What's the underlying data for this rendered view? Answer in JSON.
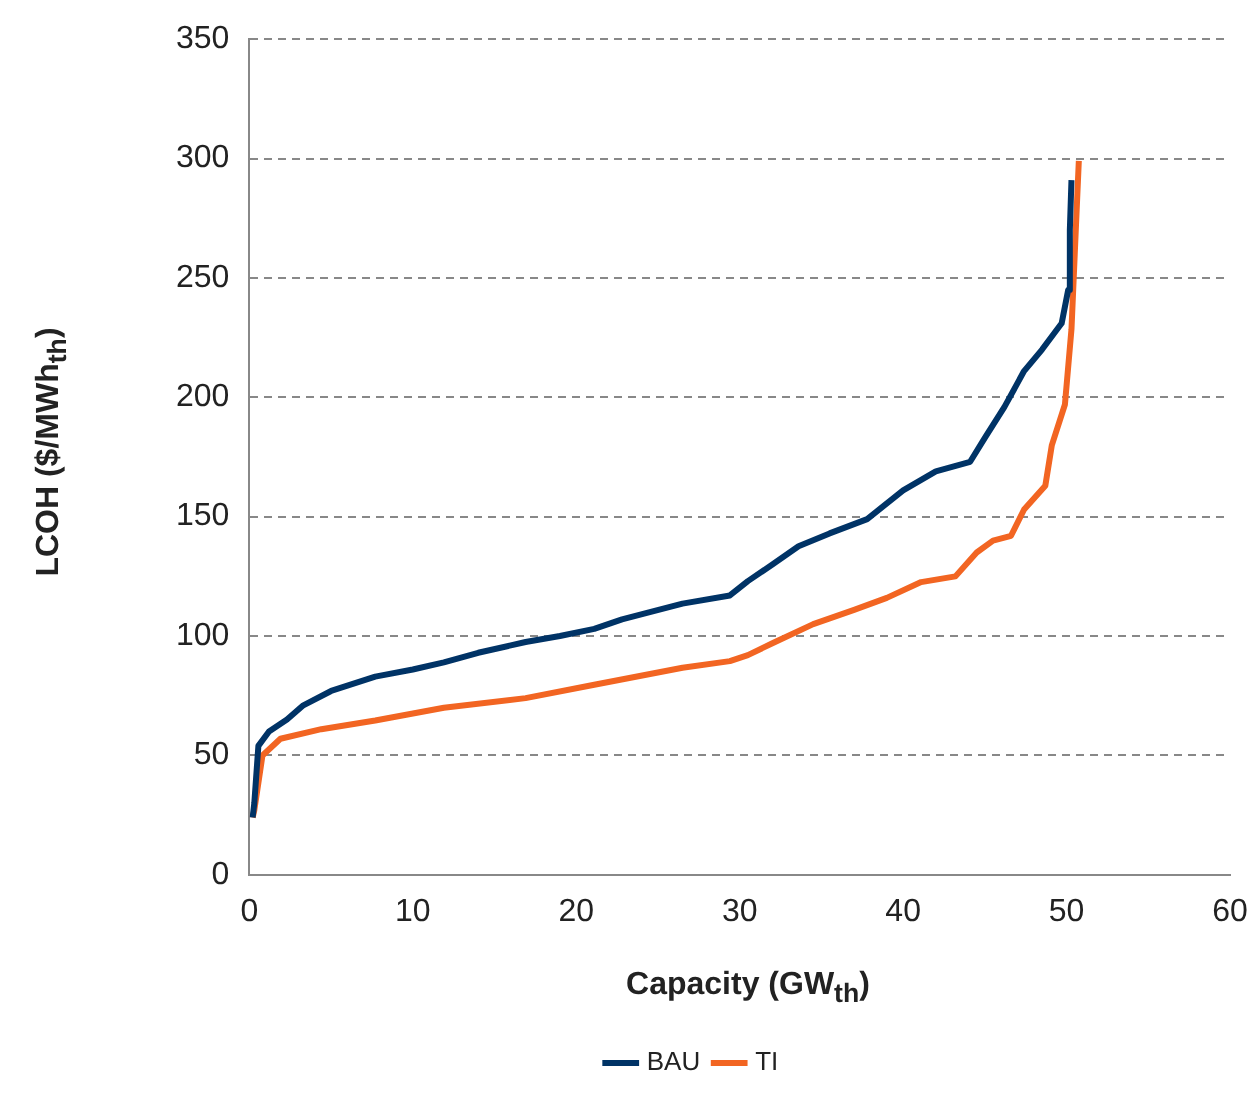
{
  "chart_data": {
    "type": "line",
    "xlabel": "Capacity (GW$_{th}$)",
    "ylabel": "LCOH ($/MWh$_{th}$)",
    "xlim": [
      0,
      60
    ],
    "xticks": [
      0,
      10,
      20,
      30,
      40,
      50,
      60
    ],
    "ylim": [
      0,
      350
    ],
    "yticks": [
      0,
      50,
      100,
      150,
      200,
      250,
      300,
      350
    ],
    "grid": "y",
    "legend": "bottom",
    "marker": "none",
    "series": [
      {
        "name": "BAU",
        "color": "#003366",
        "x": [
          0.2,
          0.3,
          0.55,
          1.2,
          2.3,
          3.3,
          5,
          7.7,
          10,
          11.9,
          14,
          16.9,
          19,
          21.1,
          22.8,
          24.5,
          26.5,
          29.4,
          30.5,
          32,
          33.6,
          35.5,
          37.8,
          40,
          42,
          44.1,
          45,
          46.2,
          47.4,
          48.5,
          49.7,
          50.1,
          50.2,
          50.3
        ],
        "values": [
          24,
          30,
          54,
          60,
          65,
          71,
          77,
          83,
          86,
          89,
          93,
          97.5,
          100,
          103,
          107,
          110,
          113.6,
          117,
          123,
          130,
          137.6,
          143,
          149,
          161,
          169,
          173,
          183,
          196,
          211,
          220,
          231,
          245,
          270,
          291
        ]
      },
      {
        "name": "TI",
        "color": "#f26522",
        "x": [
          0.2,
          0.3,
          0.8,
          1.9,
          4.4,
          7.7,
          11.9,
          16.9,
          21.1,
          26.5,
          29.4,
          30.5,
          32,
          34.5,
          37,
          39,
          41.1,
          43.2,
          44.5,
          45.5,
          46.6,
          47.4,
          48.7,
          49.1,
          49.9,
          50.3,
          50.5,
          50.75
        ],
        "values": [
          24,
          27,
          50,
          57,
          61,
          64.6,
          70,
          74,
          79.6,
          86.7,
          89.5,
          92,
          97,
          105,
          111,
          116,
          122.6,
          125,
          135,
          140,
          142,
          153,
          163,
          180,
          197,
          228.5,
          260,
          299
        ]
      }
    ]
  }
}
